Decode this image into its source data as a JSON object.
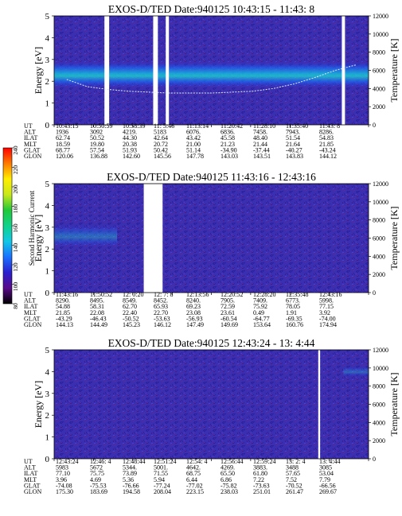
{
  "colors": {
    "background_noise": "#3a2fb0",
    "noise_dark": "#2a1f8f",
    "colorbar_stops": [
      "#000000",
      "#5a0a8a",
      "#2a1fcf",
      "#1a70ff",
      "#12c8e6",
      "#10d28a",
      "#22c83a",
      "#c8e81a",
      "#ffee00",
      "#ff7a00",
      "#ff0000"
    ],
    "temperature_trace": "#d8e8ff",
    "gap": "#ffffff"
  },
  "colorbar": {
    "label": "Second Harmonic Current",
    "ticks": [
      "80",
      "100",
      "120",
      "140",
      "160",
      "180",
      "200",
      "220",
      "240"
    ]
  },
  "chart_data": [
    {
      "type": "heatmap",
      "title": "EXOS-D/TED   Date:940125  10:43:15 - 11:43: 8",
      "ylabel": "Energy [eV]",
      "y2label": "Temperature [K]",
      "ylim": [
        0,
        5
      ],
      "y2lim": [
        0,
        12000
      ],
      "y_ticks": [
        "0",
        "1",
        "2",
        "3",
        "4",
        "5"
      ],
      "y2_ticks": [
        "0",
        "2000",
        "4000",
        "6000",
        "8000",
        "10000",
        "12000"
      ],
      "band": {
        "center_ev": 2.3,
        "width_ev": 1.3,
        "strength": 0.75
      },
      "data_gaps_fraction": [
        [
          0.16,
          0.175
        ],
        [
          0.315,
          0.33
        ],
        [
          0.355,
          0.365
        ],
        [
          0.915,
          0.925
        ]
      ],
      "temperature_trace": [
        5000,
        4200,
        3900,
        3700,
        3600,
        3500,
        3500,
        3500,
        3600,
        3700,
        4000,
        4500,
        5200,
        6000,
        6600
      ],
      "orbit_table": {
        "row_labels": [
          "UT",
          "ALT",
          "ILAT",
          "MLT",
          "GLAT",
          "GLON"
        ],
        "columns": [
          [
            "10:43:15",
            "1936",
            "62.74",
            "18.59",
            "68.77",
            "120.06"
          ],
          [
            "10:50:59",
            "3092",
            "50.52",
            "19.80",
            "57.54",
            "136.88"
          ],
          [
            "10:58:39",
            "4219.",
            "44.30",
            "20.38",
            "51.93",
            "142.60"
          ],
          [
            "11: 5:46",
            "5183",
            "42.64",
            "20.72",
            "50.42",
            "145.56"
          ],
          [
            "11:13:14",
            "6076.",
            "43.42",
            "21.00",
            "51.14",
            "147.78"
          ],
          [
            "11:20:42",
            "6836.",
            "45.58",
            "21.23",
            "-34.90",
            "143.03"
          ],
          [
            "11:28:10",
            "7458.",
            "48.40",
            "21.44",
            "-37.44",
            "143.51"
          ],
          [
            "11:35:40",
            "7943.",
            "51.54",
            "21.64",
            "-40.27",
            "143.83"
          ],
          [
            "11:43: 8",
            "8286.",
            "54.83",
            "21.85",
            "-43.24",
            "144.12"
          ]
        ]
      }
    },
    {
      "type": "heatmap",
      "title": "EXOS-D/TED   Date:940125  11:43:16 - 12:43:16",
      "ylabel": "Energy [eV]",
      "y2label": "Temperature [K]",
      "ylim": [
        0,
        5
      ],
      "y2lim": [
        0,
        12000
      ],
      "y_ticks": [
        "0",
        "1",
        "2",
        "3",
        "4",
        "5"
      ],
      "y2_ticks": [
        "0",
        "2000",
        "4000",
        "6000",
        "8000",
        "10000",
        "12000"
      ],
      "band": {
        "center_ev": 2.6,
        "width_ev": 1.1,
        "strength": 0.35,
        "x_end_fraction": 0.2
      },
      "data_gaps_fraction": [
        [
          0.285,
          0.345
        ]
      ],
      "temperature_trace": [],
      "orbit_table": {
        "row_labels": [
          "UT",
          "ALT",
          "ILAT",
          "MLT",
          "GLAT",
          "GLON"
        ],
        "columns": [
          [
            "11:43:16",
            "8290.",
            "54.88",
            "21.85",
            "-43.29",
            "144.13"
          ],
          [
            "11:50:52",
            "8495.",
            "58.31",
            "22.08",
            "-46.43",
            "144.49"
          ],
          [
            "12: 0:20",
            "8549.",
            "62.70",
            "22.40",
            "-50.52",
            "145.23"
          ],
          [
            "12: 7: 8",
            "8452.",
            "65.93",
            "22.70",
            "-53.63",
            "146.12"
          ],
          [
            "12:13:56",
            "8240.",
            "69.23",
            "23.08",
            "-56.93",
            "147.49"
          ],
          [
            "12:20:52",
            "7905.",
            "72.59",
            "23.61",
            "-60.54",
            "149.69"
          ],
          [
            "12:28:20",
            "7409.",
            "75.92",
            "0.49",
            "-64.77",
            "153.64"
          ],
          [
            "12:35:48",
            "6773.",
            "78.05",
            "1.91",
            "-69.35",
            "160.76"
          ],
          [
            "12:43:16",
            "5998.",
            "77.15",
            "3.92",
            "-74.00",
            "174.94"
          ]
        ]
      }
    },
    {
      "type": "heatmap",
      "title": "EXOS-D/TED   Date:940125  12:43:24 - 13: 4:44",
      "ylabel": "Energy [eV]",
      "y2label": "Temperature [K]",
      "ylim": [
        0,
        5
      ],
      "y2lim": [
        0,
        12000
      ],
      "y_ticks": [
        "0",
        "1",
        "2",
        "3",
        "4",
        "5"
      ],
      "y2_ticks": [
        "0",
        "2000",
        "4000",
        "6000",
        "8000",
        "10000",
        "12000"
      ],
      "band": {
        "center_ev": 4.0,
        "width_ev": 0.5,
        "strength": 0.3,
        "x_start_fraction": 0.92
      },
      "data_gaps_fraction": [
        [
          0.84,
          0.846
        ]
      ],
      "temperature_trace": [],
      "orbit_table": {
        "row_labels": [
          "UT",
          "ALT",
          "ILAT",
          "MLT",
          "GLAT",
          "GLON"
        ],
        "columns": [
          [
            "12:43:24",
            "5983",
            "77.10",
            "3.96",
            "-74.08",
            "175.30"
          ],
          [
            "12:46: 4",
            "5672",
            "75.75",
            "4.69",
            "-75.53",
            "183.69"
          ],
          [
            "12:48:44",
            "5344.",
            "73.89",
            "5.36",
            "-76.66",
            "194.58"
          ],
          [
            "12:51:24",
            "5001.",
            "71.55",
            "5.94",
            "-77.24",
            "208.04"
          ],
          [
            "12:54: 4",
            "4642.",
            "68.75",
            "6.44",
            "-77.02",
            "223.15"
          ],
          [
            "12:56:44",
            "4269.",
            "65.50",
            "6.86",
            "-75.82",
            "238.03"
          ],
          [
            "12:59:24",
            "3883.",
            "61.80",
            "7.22",
            "-73.63",
            "251.01"
          ],
          [
            "13: 2: 4",
            "3488",
            "57.65",
            "7.52",
            "-70.52",
            "261.47"
          ],
          [
            "13: 4:44",
            "3085",
            "53.04",
            "7.79",
            "-66.56",
            "269.67"
          ]
        ]
      }
    }
  ]
}
